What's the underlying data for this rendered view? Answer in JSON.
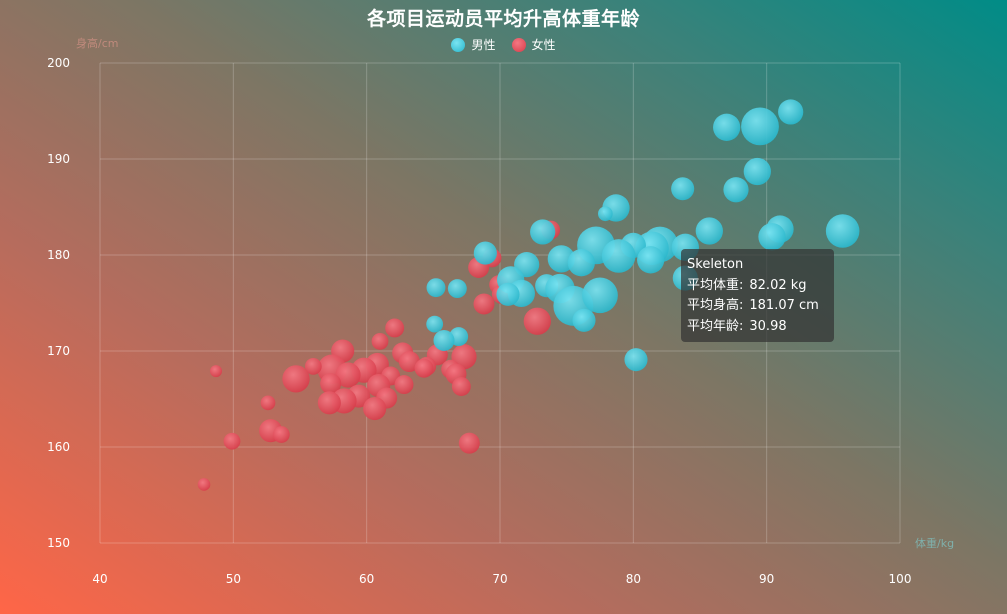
{
  "chart_data": {
    "type": "scatter",
    "title": "各项目运动员平均升高体重年龄",
    "xlabel": "体重/kg",
    "ylabel": "身高/cm",
    "xlim": [
      40,
      100
    ],
    "ylim": [
      150,
      200
    ],
    "xticks": [
      "40",
      "50",
      "60",
      "70",
      "80",
      "90",
      "100"
    ],
    "yticks": [
      "150",
      "160",
      "170",
      "180",
      "190",
      "200"
    ],
    "grid": true,
    "legend_position": "top-center",
    "series": [
      {
        "name": "男性",
        "color": "#4ac8dc",
        "points": [
          [
            89.5,
            193.4,
            32
          ],
          [
            91.8,
            194.9,
            26
          ],
          [
            87.0,
            193.3,
            27
          ],
          [
            89.3,
            188.7,
            27
          ],
          [
            87.7,
            186.8,
            26
          ],
          [
            83.7,
            186.9,
            25
          ],
          [
            78.7,
            184.9,
            27
          ],
          [
            77.9,
            184.3,
            21
          ],
          [
            95.7,
            182.5,
            30
          ],
          [
            91.0,
            182.7,
            27
          ],
          [
            90.4,
            181.9,
            27
          ],
          [
            85.7,
            182.5,
            27
          ],
          [
            82.0,
            181.1,
            31
          ],
          [
            81.4,
            180.7,
            30
          ],
          [
            83.9,
            180.8,
            27
          ],
          [
            80.0,
            181.0,
            26
          ],
          [
            77.2,
            181.0,
            32
          ],
          [
            78.9,
            179.9,
            30
          ],
          [
            81.3,
            179.5,
            27
          ],
          [
            73.2,
            182.4,
            26
          ],
          [
            74.6,
            179.6,
            27
          ],
          [
            76.1,
            179.2,
            27
          ],
          [
            72.0,
            179.0,
            26
          ],
          [
            68.9,
            180.2,
            25
          ],
          [
            70.8,
            177.4,
            27
          ],
          [
            71.6,
            176.0,
            27
          ],
          [
            73.5,
            176.8,
            25
          ],
          [
            74.5,
            176.5,
            28
          ],
          [
            70.6,
            175.9,
            25
          ],
          [
            75.5,
            174.7,
            33
          ],
          [
            77.5,
            175.8,
            31
          ],
          [
            76.3,
            173.2,
            25
          ],
          [
            83.9,
            177.6,
            26
          ],
          [
            80.2,
            169.1,
            25
          ],
          [
            65.2,
            176.6,
            23
          ],
          [
            66.8,
            176.5,
            23
          ],
          [
            65.1,
            172.8,
            22
          ],
          [
            66.9,
            171.5,
            23
          ],
          [
            65.8,
            171.1,
            24
          ]
        ]
      },
      {
        "name": "女性",
        "color": "#e45662",
        "points": [
          [
            73.8,
            182.6,
            23
          ],
          [
            69.4,
            179.7,
            23
          ],
          [
            68.4,
            178.7,
            24
          ],
          [
            69.9,
            176.9,
            23
          ],
          [
            70.1,
            175.9,
            23
          ],
          [
            68.8,
            174.9,
            24
          ],
          [
            72.8,
            173.1,
            27
          ],
          [
            62.1,
            172.4,
            23
          ],
          [
            61.0,
            171.0,
            22
          ],
          [
            58.2,
            170.0,
            25
          ],
          [
            62.7,
            169.8,
            24
          ],
          [
            63.2,
            168.9,
            24
          ],
          [
            65.3,
            169.6,
            24
          ],
          [
            67.3,
            169.4,
            26
          ],
          [
            64.5,
            168.4,
            23
          ],
          [
            66.3,
            168.1,
            23
          ],
          [
            66.7,
            167.6,
            24
          ],
          [
            60.8,
            168.6,
            25
          ],
          [
            59.8,
            168.0,
            26
          ],
          [
            57.4,
            168.1,
            28
          ],
          [
            56.0,
            168.4,
            22
          ],
          [
            54.7,
            167.1,
            27
          ],
          [
            58.6,
            167.5,
            26
          ],
          [
            61.8,
            167.4,
            23
          ],
          [
            60.9,
            166.4,
            25
          ],
          [
            57.3,
            166.6,
            24
          ],
          [
            62.8,
            166.5,
            23
          ],
          [
            64.3,
            168.2,
            23
          ],
          [
            67.1,
            166.3,
            23
          ],
          [
            59.4,
            165.3,
            25
          ],
          [
            61.5,
            165.1,
            24
          ],
          [
            58.3,
            164.8,
            26
          ],
          [
            57.2,
            164.6,
            25
          ],
          [
            60.6,
            164.0,
            25
          ],
          [
            52.6,
            164.6,
            21
          ],
          [
            52.8,
            161.7,
            25
          ],
          [
            53.6,
            161.3,
            22
          ],
          [
            49.9,
            160.6,
            22
          ],
          [
            67.7,
            160.4,
            24
          ],
          [
            48.7,
            167.9,
            18
          ],
          [
            47.8,
            156.1,
            20
          ]
        ]
      }
    ]
  },
  "tooltip": {
    "title": "Skeleton",
    "weight_label": "平均体重:",
    "weight_value": "82.02 kg",
    "height_label": "平均身高:",
    "height_value": "181.07 cm",
    "age_label": "平均年龄:",
    "age_value": "30.98"
  }
}
